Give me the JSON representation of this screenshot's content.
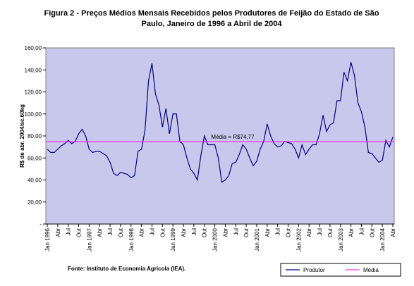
{
  "chart_data": {
    "type": "line",
    "title": [
      "Figura 2 - Preços Médios Mensais Recebidos pelos Produtores de Feijão do Estado de São",
      "Paulo, Janeiro de 1996 a Abril de 2004"
    ],
    "ylabel": "R$ de abr. 2004/sc.60kg",
    "source": "Fonte: Instituto de Economia Agrícola (IEA).",
    "categories": [
      "Jan 1996",
      null,
      null,
      "Abr",
      null,
      null,
      "Jul",
      null,
      null,
      "Out",
      null,
      null,
      "Jan 1997",
      null,
      null,
      "Abr",
      null,
      null,
      "Jul",
      null,
      null,
      "Out",
      null,
      null,
      "Jan 1998",
      null,
      null,
      "Abr",
      null,
      null,
      "Jul",
      null,
      null,
      "Out",
      null,
      null,
      "Jan 1999",
      null,
      null,
      "Abr",
      null,
      null,
      "Jul",
      null,
      null,
      "Out",
      null,
      null,
      "Jan 2000",
      null,
      null,
      "Abr",
      null,
      null,
      "Jul",
      null,
      null,
      "Out",
      null,
      null,
      "Jan 2001",
      null,
      null,
      "Abr",
      null,
      null,
      "Jul",
      null,
      null,
      "Out",
      null,
      null,
      "Jan 2002",
      null,
      null,
      "Abr",
      null,
      null,
      "Jul",
      null,
      null,
      "Out",
      null,
      null,
      "Jan 2003",
      null,
      null,
      "Abr",
      null,
      null,
      "Jul",
      null,
      null,
      "Out",
      null,
      null,
      "Jan 2004",
      null,
      null,
      "Abr"
    ],
    "series": [
      {
        "name": "Produtor",
        "color": "#000080",
        "values": [
          68,
          65,
          65,
          68,
          71,
          73,
          76,
          73,
          75,
          82,
          86,
          80,
          68,
          65,
          66,
          66,
          64,
          62,
          56,
          46,
          44,
          47,
          46,
          45,
          42,
          44,
          66,
          68,
          85,
          130,
          146,
          118,
          108,
          88,
          105,
          82,
          100,
          100,
          75,
          72,
          60,
          50,
          46,
          40,
          62,
          80,
          72,
          72,
          72,
          60,
          38,
          40,
          44,
          55,
          56,
          63,
          72,
          68,
          60,
          53,
          57,
          68,
          75,
          91,
          80,
          73,
          70,
          71,
          75,
          74,
          73,
          68,
          60,
          72,
          63,
          68,
          72,
          72,
          82,
          99,
          84,
          90,
          92,
          112,
          112,
          138,
          130,
          147,
          135,
          110,
          102,
          88,
          65,
          64,
          60,
          56,
          58,
          76,
          70,
          79
        ]
      }
    ],
    "mean": {
      "name": "Média",
      "value": 74.77,
      "color": "#ff00ff",
      "label": "Média = R$74,77"
    },
    "ylim": [
      0,
      160
    ],
    "yticks": [
      {
        "value": 0,
        "label": "-"
      },
      {
        "value": 20,
        "label": "20,00"
      },
      {
        "value": 40,
        "label": "40,00"
      },
      {
        "value": 60,
        "label": "60,00"
      },
      {
        "value": 80,
        "label": "80,00"
      },
      {
        "value": 100,
        "label": "100,00"
      },
      {
        "value": 120,
        "label": "120,00"
      },
      {
        "value": 140,
        "label": "140,00"
      },
      {
        "value": 160,
        "label": "160,00"
      }
    ],
    "plot_background": "#c8c8ec"
  }
}
